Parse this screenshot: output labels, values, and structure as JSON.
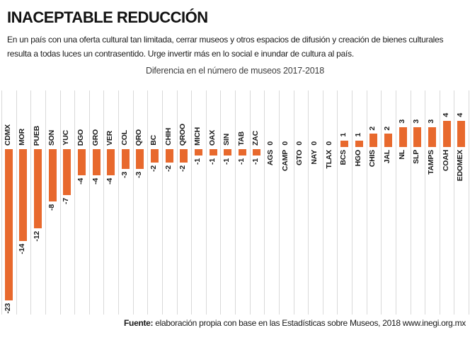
{
  "title": "INACEPTABLE REDUCCIÓN",
  "description": "En un país con una oferta cultural tan limitada, cerrar museos y otros espacios de difusión y creación de bienes culturales resulta a todas luces un contrasentido. Urge invertir más en lo social e inundar de cultura al país.",
  "chart_data": {
    "type": "bar",
    "title": "Diferencia en el número de museos 2017-2018",
    "orientation": "vertical-columns",
    "categories": [
      "CDMX",
      "MOR",
      "PUEB",
      "SON",
      "YUC",
      "DGO",
      "GRO",
      "VER",
      "COL",
      "QRO",
      "BC",
      "CHIH",
      "QROO",
      "MICH",
      "OAX",
      "SIN",
      "TAB",
      "ZAC",
      "AGS",
      "CAMP",
      "GTO",
      "NAY",
      "TLAX",
      "BCS",
      "HGO",
      "CHIS",
      "JAL",
      "NL",
      "SLP",
      "TAMPS",
      "COAH",
      "EDOMEX"
    ],
    "values": [
      -23,
      -14,
      -12,
      -8,
      -7,
      -4,
      -4,
      -4,
      -3,
      -3,
      -2,
      -2,
      -2,
      -1,
      -1,
      -1,
      -1,
      -1,
      0,
      0,
      0,
      0,
      0,
      1,
      1,
      2,
      2,
      3,
      3,
      3,
      4,
      4
    ],
    "ylim": [
      -23,
      4
    ],
    "bar_color": "#E8692D",
    "gridline_color": "#D9D9D9",
    "grid": "vertical",
    "value_labels": "at-bar-ends",
    "legend": "none"
  },
  "source": {
    "label": "Fuente:",
    "text": "elaboración propia con base en las Estadísticas sobre Museos, 2018 www.inegi.org.mx"
  }
}
